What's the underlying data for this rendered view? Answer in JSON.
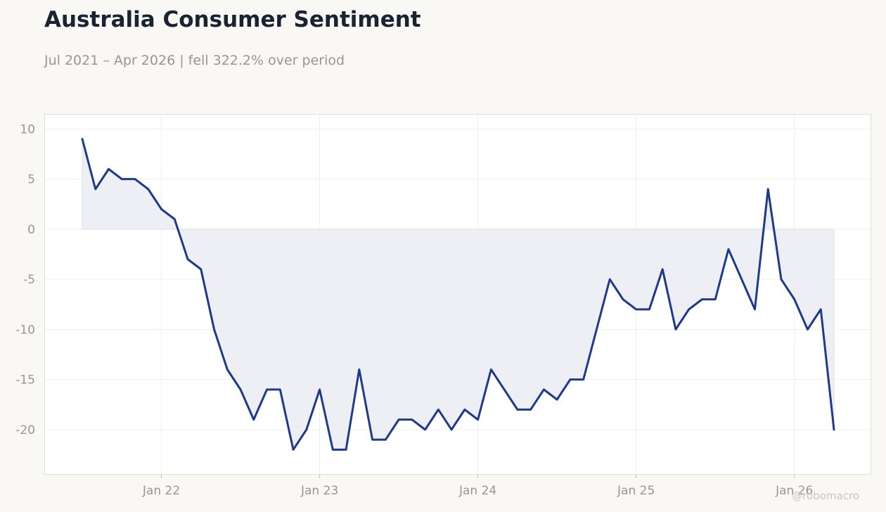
{
  "header": {
    "title": "Australia Consumer Sentiment",
    "subtitle": "Jul 2021 – Apr 2026 | fell 322.2% over period"
  },
  "credit": "@robomacro",
  "colors": {
    "background": "#f9f8f5",
    "plot_background": "#ffffff",
    "line": "#1f3a8a",
    "fill": "#eeeff5",
    "grid": "#f0efec",
    "plot_border": "#e0ded8",
    "tick_text": "#999690"
  },
  "chart_data": {
    "type": "area",
    "title": "Australia Consumer Sentiment",
    "subtitle": "Jul 2021 – Apr 2026 | fell 322.2% over period",
    "xlabel": "",
    "ylabel": "",
    "x_start": "2021-07",
    "x_end": "2026-04",
    "x_ticks": [
      {
        "date": "2022-01",
        "label": "Jan 22"
      },
      {
        "date": "2023-01",
        "label": "Jan 23"
      },
      {
        "date": "2024-01",
        "label": "Jan 24"
      },
      {
        "date": "2025-01",
        "label": "Jan 25"
      },
      {
        "date": "2026-01",
        "label": "Jan 26"
      }
    ],
    "y_ticks": [
      10,
      5,
      0,
      -5,
      -10,
      -15,
      -20
    ],
    "ylim": [
      -24.5,
      11.5
    ],
    "grid": true,
    "legend": "none",
    "series": [
      {
        "dates": [
          "2021-07",
          "2021-08",
          "2021-09",
          "2021-10",
          "2021-11",
          "2021-12",
          "2022-01",
          "2022-02",
          "2022-03",
          "2022-04",
          "2022-05",
          "2022-06",
          "2022-07",
          "2022-08",
          "2022-09",
          "2022-10",
          "2022-11",
          "2022-12",
          "2023-01",
          "2023-02",
          "2023-03",
          "2023-04",
          "2023-05",
          "2023-06",
          "2023-07",
          "2023-08",
          "2023-09",
          "2023-10",
          "2023-11",
          "2023-12",
          "2024-01",
          "2024-02",
          "2024-03",
          "2024-04",
          "2024-05",
          "2024-06",
          "2024-07",
          "2024-08",
          "2024-09",
          "2024-10",
          "2024-11",
          "2024-12",
          "2025-01",
          "2025-02",
          "2025-03",
          "2025-04",
          "2025-05",
          "2025-06",
          "2025-07",
          "2025-08",
          "2025-09",
          "2025-10",
          "2025-11",
          "2025-12",
          "2026-01",
          "2026-02",
          "2026-03",
          "2026-04"
        ],
        "values": [
          9,
          4,
          6,
          5,
          5,
          4,
          2,
          1,
          -3,
          -4,
          -10,
          -14,
          -16,
          -19,
          -16,
          -16,
          -22,
          -20,
          -16,
          -22,
          -22,
          -14,
          -21,
          -21,
          -19,
          -19,
          -20,
          -18,
          -20,
          -18,
          -19,
          -14,
          -16,
          -18,
          -18,
          -16,
          -17,
          -15,
          -15,
          -10,
          -5,
          -7,
          -8,
          -8,
          -4,
          -10,
          -8,
          -7,
          -7,
          -2,
          -5,
          -8,
          4,
          -5,
          -7,
          -10,
          -8,
          -20
        ]
      }
    ]
  }
}
